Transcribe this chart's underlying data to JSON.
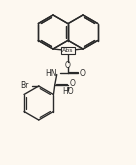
{
  "bg_color": "#fdf8f0",
  "line_color": "#2a2a2a",
  "lw": 1.0,
  "figsize": [
    1.36,
    1.65
  ],
  "dpi": 100,
  "xlim": [
    0,
    136
  ],
  "ylim": [
    0,
    165
  ]
}
